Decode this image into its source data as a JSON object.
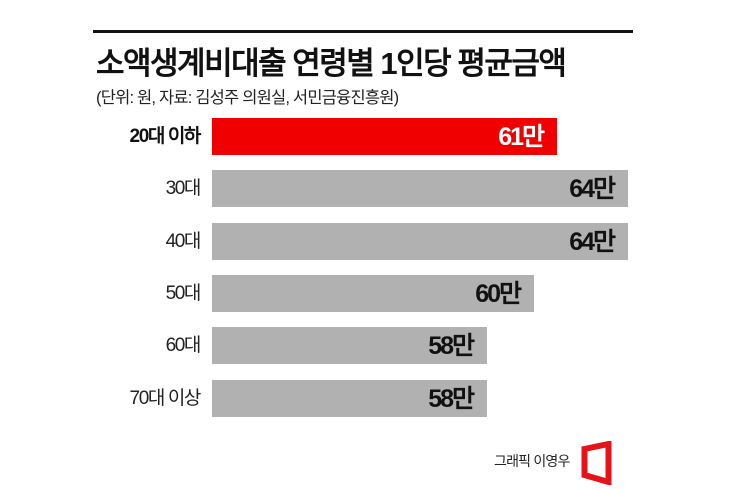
{
  "header": {
    "title": "소액생계비대출 연령별 1인당 평균금액",
    "subtitle": "(단위: 원, 자료: 김성주 의원실, 서민금융진흥원)"
  },
  "colors": {
    "highlight": "#f00000",
    "bar": "#b1b1b1",
    "text": "#111111",
    "rule": "#111111"
  },
  "chart_data": {
    "type": "bar",
    "orientation": "horizontal",
    "title": "소액생계비대출 연령별 1인당 평균금액",
    "subtitle": "(단위: 원, 자료: 김성주 의원실, 서민금융진흥원)",
    "unit": "원",
    "categories": [
      "20대 이하",
      "30대",
      "40대",
      "50대",
      "60대",
      "70대 이상"
    ],
    "values": [
      610000,
      640000,
      640000,
      600000,
      580000,
      580000
    ],
    "value_labels": [
      "61만",
      "64만",
      "64만",
      "60만",
      "58만",
      "58만"
    ],
    "highlighted_category": "20대 이하",
    "xlabel": "",
    "ylabel": "",
    "grid": false,
    "legend": null
  },
  "rows": [
    {
      "label": "20대 이하",
      "value": 61,
      "value_label": "61만",
      "highlight": true
    },
    {
      "label": "30대",
      "value": 64,
      "value_label": "64만",
      "highlight": false
    },
    {
      "label": "40대",
      "value": 64,
      "value_label": "64만",
      "highlight": false
    },
    {
      "label": "50대",
      "value": 60,
      "value_label": "60만",
      "highlight": false
    },
    {
      "label": "60대",
      "value": 58,
      "value_label": "58만",
      "highlight": false
    },
    {
      "label": "70대 이상",
      "value": 58,
      "value_label": "58만",
      "highlight": false
    }
  ],
  "footer": {
    "credit": "그래픽 이영우",
    "logo_icon": "red-trapezoid-logo"
  }
}
